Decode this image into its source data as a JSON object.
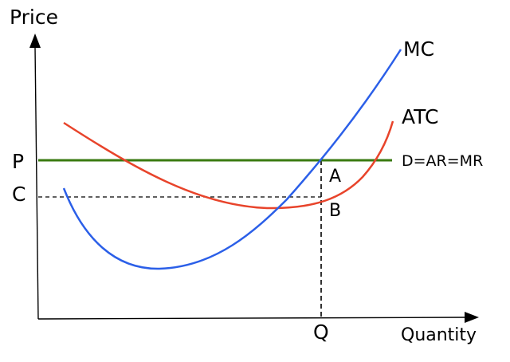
{
  "axes": {
    "y_label": "Price",
    "x_label": "Quantity",
    "color": "#000000"
  },
  "price_ticks": {
    "p": "P",
    "c": "C"
  },
  "quantity_ticks": {
    "q": "Q"
  },
  "curves": {
    "mc": {
      "label": "MC",
      "color": "#2b5fe8"
    },
    "atc": {
      "label": "ATC",
      "color": "#e8442b"
    },
    "demand": {
      "label": "D=AR=MR",
      "color": "#3a7a10"
    }
  },
  "points": {
    "a": "A",
    "b": "B"
  },
  "guides": {
    "style": "dashed",
    "color": "#000000"
  }
}
